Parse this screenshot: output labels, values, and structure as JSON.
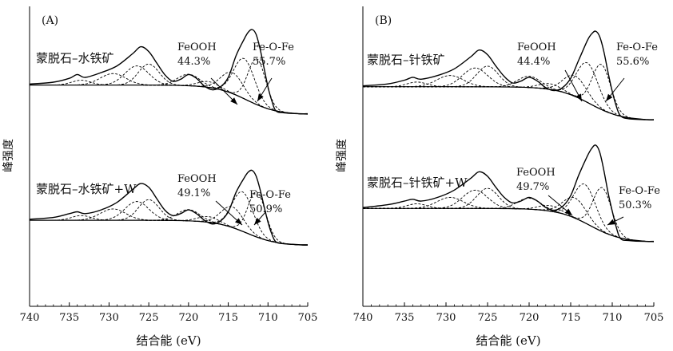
{
  "chart_data": [
    {
      "type": "line",
      "panel_label": "(A)",
      "xlabel": "结合能 (eV)",
      "ylabel": "峰强度",
      "xlim": [
        740,
        705
      ],
      "x_reversed": true,
      "xticks": [
        740,
        735,
        730,
        725,
        720,
        715,
        710,
        705
      ],
      "grid": false,
      "spectra": [
        {
          "label": "蒙脱石–水铁矿",
          "peaks": [
            {
              "name": "FeOOH",
              "percent": "44.3%",
              "center_eV": 713.0
            },
            {
              "name": "Fe-O-Fe",
              "percent": "55.7%",
              "center_eV": 711.4
            }
          ],
          "envelope_x": [
            740,
            737,
            735,
            734,
            733,
            731,
            729,
            727,
            726,
            725,
            724,
            723,
            722,
            721,
            720,
            719,
            718,
            717,
            716,
            715,
            714,
            713,
            712.5,
            712,
            711.5,
            711,
            710.5,
            710,
            709.5,
            709,
            708,
            706,
            705
          ],
          "envelope_y": [
            0.08,
            0.1,
            0.14,
            0.18,
            0.15,
            0.2,
            0.27,
            0.4,
            0.47,
            0.42,
            0.3,
            0.18,
            0.11,
            0.13,
            0.18,
            0.14,
            0.06,
            0.02,
            0.05,
            0.15,
            0.38,
            0.55,
            0.62,
            0.65,
            0.6,
            0.45,
            0.25,
            0.05,
            -0.1,
            -0.2,
            -0.22,
            -0.23,
            -0.23
          ]
        },
        {
          "label": "蒙脱石–水铁矿+W",
          "peaks": [
            {
              "name": "FeOOH",
              "percent": "49.1%",
              "center_eV": 713.2
            },
            {
              "name": "Fe-O-Fe",
              "percent": "50.9%",
              "center_eV": 711.4
            }
          ],
          "envelope_x": [
            740,
            737,
            735,
            734,
            733,
            731,
            729,
            727,
            726,
            725,
            724,
            723,
            722,
            721,
            720,
            719,
            718,
            717,
            716,
            715,
            714,
            713,
            712.5,
            712,
            711.5,
            711,
            710.5,
            710,
            709.5,
            709,
            708,
            706,
            705
          ],
          "envelope_y": [
            0.06,
            0.08,
            0.12,
            0.14,
            0.12,
            0.16,
            0.24,
            0.38,
            0.44,
            0.4,
            0.28,
            0.16,
            0.1,
            0.12,
            0.16,
            0.12,
            0.05,
            0.01,
            0.04,
            0.14,
            0.35,
            0.5,
            0.56,
            0.58,
            0.52,
            0.38,
            0.2,
            0.03,
            -0.1,
            -0.18,
            -0.2,
            -0.21,
            -0.21
          ]
        }
      ]
    },
    {
      "type": "line",
      "panel_label": "(B)",
      "xlabel": "结合能 (eV)",
      "ylabel": "峰强度",
      "xlim": [
        740,
        705
      ],
      "x_reversed": true,
      "xticks": [
        740,
        735,
        730,
        725,
        720,
        715,
        710,
        705
      ],
      "grid": false,
      "spectra": [
        {
          "label": "蒙脱石–针铁矿",
          "peaks": [
            {
              "name": "FeOOH",
              "percent": "44.4%",
              "center_eV": 713.0
            },
            {
              "name": "Fe-O-Fe",
              "percent": "55.6%",
              "center_eV": 711.3
            }
          ],
          "envelope_x": [
            740,
            737,
            735,
            734,
            733,
            731,
            729,
            727,
            726,
            725,
            724,
            723,
            722,
            721,
            720,
            719,
            718,
            717,
            716,
            715,
            714,
            713,
            712.5,
            712,
            711.5,
            711,
            710.5,
            710,
            709.5,
            709,
            708,
            706,
            705
          ],
          "envelope_y": [
            0.08,
            0.1,
            0.14,
            0.17,
            0.15,
            0.19,
            0.26,
            0.39,
            0.46,
            0.41,
            0.29,
            0.18,
            0.11,
            0.13,
            0.17,
            0.13,
            0.06,
            0.03,
            0.06,
            0.16,
            0.36,
            0.56,
            0.63,
            0.66,
            0.6,
            0.44,
            0.22,
            0.02,
            -0.14,
            -0.24,
            -0.27,
            -0.28,
            -0.28
          ]
        },
        {
          "label": "蒙脱石–针铁矿+W",
          "peaks": [
            {
              "name": "FeOOH",
              "percent": "49.7%",
              "center_eV": 713.3
            },
            {
              "name": "Fe-O-Fe",
              "percent": "50.3%",
              "center_eV": 711.2
            }
          ],
          "envelope_x": [
            740,
            737,
            735,
            734,
            733,
            731,
            729,
            727,
            726,
            725,
            724,
            723,
            722,
            721,
            720,
            719,
            718,
            717,
            716,
            715,
            714,
            713,
            712.5,
            712,
            711.5,
            711,
            710.5,
            710,
            709.5,
            709,
            708,
            706,
            705
          ],
          "envelope_y": [
            0.06,
            0.09,
            0.13,
            0.15,
            0.13,
            0.17,
            0.25,
            0.38,
            0.45,
            0.4,
            0.28,
            0.17,
            0.11,
            0.13,
            0.17,
            0.13,
            0.06,
            0.03,
            0.07,
            0.19,
            0.42,
            0.62,
            0.7,
            0.74,
            0.66,
            0.46,
            0.22,
            0.02,
            -0.16,
            -0.28,
            -0.3,
            -0.31,
            -0.31
          ]
        }
      ]
    }
  ]
}
